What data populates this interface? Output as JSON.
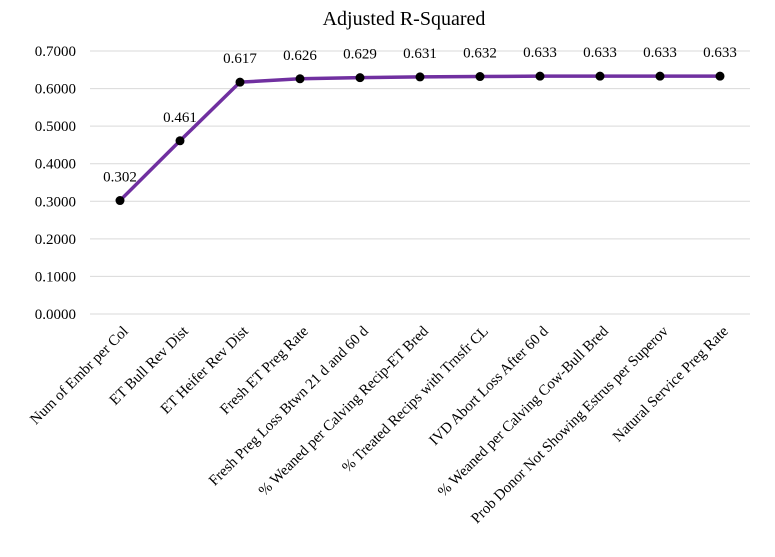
{
  "chart_data": {
    "type": "line",
    "title": "Adjusted  R-Squared",
    "xlabel": "",
    "ylabel": "",
    "categories": [
      "Num of Embr per Col",
      "ET Bull Rev Dist",
      "ET Heifer Rev Dist",
      "Fresh ET Preg Rate",
      "Fresh Preg Loss Btwn 21 d and 60 d",
      "% Weaned per Calving Recip-ET Bred",
      "% Treated Recips with Trnsfr CL",
      "IVD Abort Loss After 60 d",
      "% Weaned per Calving Cow-Bull Bred",
      "Prob Donor Not Showing Estrus per Superov",
      "Natural Service Preg Rate"
    ],
    "series": [
      {
        "values": [
          0.302,
          0.461,
          0.617,
          0.626,
          0.629,
          0.631,
          0.632,
          0.633,
          0.633,
          0.633,
          0.633
        ]
      }
    ],
    "data_labels": [
      "0.302",
      "0.461",
      "0.617",
      "0.626",
      "0.629",
      "0.631",
      "0.632",
      "0.633",
      "0.633",
      "0.633",
      "0.633"
    ],
    "ylim": [
      0,
      0.7
    ],
    "yticks": [
      0,
      0.1,
      0.2,
      0.3,
      0.4,
      0.5,
      0.6,
      0.7
    ],
    "ytick_labels": [
      "0.0000",
      "0.1000",
      "0.2000",
      "0.3000",
      "0.4000",
      "0.5000",
      "0.6000",
      "0.7000"
    ],
    "grid": true,
    "legend": "none",
    "line_color": "#7030a0",
    "marker_color": "#000000",
    "grid_color": "#d9d9d9"
  }
}
